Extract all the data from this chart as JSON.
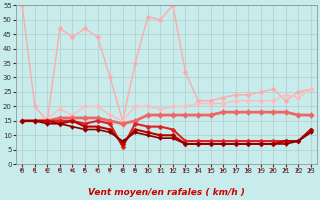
{
  "title": "",
  "xlabel": "Vent moyen/en rafales ( km/h )",
  "background_color": "#c8ecec",
  "grid_color": "#b0cccc",
  "xlim": [
    -0.5,
    23.5
  ],
  "ylim": [
    0,
    55
  ],
  "yticks": [
    0,
    5,
    10,
    15,
    20,
    25,
    30,
    35,
    40,
    45,
    50,
    55
  ],
  "xticks": [
    0,
    1,
    2,
    3,
    4,
    5,
    6,
    7,
    8,
    9,
    10,
    11,
    12,
    13,
    14,
    15,
    16,
    17,
    18,
    19,
    20,
    21,
    22,
    23
  ],
  "lines": [
    {
      "x": [
        0,
        1,
        2,
        3,
        4,
        5,
        6,
        7,
        8,
        9,
        10,
        11,
        12,
        13,
        14,
        15,
        16,
        17,
        18,
        19,
        20,
        21,
        22,
        23
      ],
      "y": [
        55,
        20,
        15,
        47,
        44,
        47,
        44,
        30,
        15,
        35,
        51,
        50,
        55,
        32,
        22,
        22,
        23,
        24,
        24,
        25,
        26,
        22,
        25,
        26
      ],
      "color": "#ffaaaa",
      "lw": 1.0,
      "marker": "D",
      "ms": 2.5
    },
    {
      "x": [
        0,
        1,
        2,
        3,
        4,
        5,
        6,
        7,
        8,
        9,
        10,
        11,
        12,
        13,
        14,
        15,
        16,
        17,
        18,
        19,
        20,
        21,
        22,
        23
      ],
      "y": [
        15,
        15,
        16,
        19,
        17,
        20,
        20,
        17,
        15,
        20,
        20,
        19,
        20,
        20,
        21,
        21,
        21,
        22,
        22,
        22,
        22,
        24,
        23,
        26
      ],
      "color": "#ffbbbb",
      "lw": 1.0,
      "marker": "D",
      "ms": 2.5
    },
    {
      "x": [
        0,
        1,
        2,
        3,
        4,
        5,
        6,
        7,
        8,
        9,
        10,
        11,
        12,
        13,
        14,
        15,
        16,
        17,
        18,
        19,
        20,
        21,
        22,
        23
      ],
      "y": [
        15,
        15,
        15,
        16,
        16,
        16,
        16,
        15,
        14,
        15,
        17,
        17,
        17,
        17,
        17,
        17,
        18,
        18,
        18,
        18,
        18,
        18,
        17,
        17
      ],
      "color": "#ee6666",
      "lw": 2.0,
      "marker": "D",
      "ms": 3
    },
    {
      "x": [
        0,
        1,
        2,
        3,
        4,
        5,
        6,
        7,
        8,
        9,
        10,
        11,
        12,
        13,
        14,
        15,
        16,
        17,
        18,
        19,
        20,
        21,
        22,
        23
      ],
      "y": [
        15,
        15,
        15,
        15,
        15,
        14,
        15,
        14,
        6,
        14,
        13,
        13,
        12,
        8,
        8,
        8,
        8,
        8,
        8,
        8,
        8,
        8,
        8,
        12
      ],
      "color": "#dd2222",
      "lw": 1.5,
      "marker": "D",
      "ms": 2.5
    },
    {
      "x": [
        0,
        1,
        2,
        3,
        4,
        5,
        6,
        7,
        8,
        9,
        10,
        11,
        12,
        13,
        14,
        15,
        16,
        17,
        18,
        19,
        20,
        21,
        22,
        23
      ],
      "y": [
        15,
        15,
        15,
        14,
        15,
        13,
        13,
        12,
        7,
        12,
        11,
        10,
        10,
        7,
        7,
        7,
        7,
        7,
        7,
        7,
        7,
        8,
        8,
        12
      ],
      "color": "#bb0000",
      "lw": 1.5,
      "marker": "D",
      "ms": 2.5
    },
    {
      "x": [
        0,
        1,
        2,
        3,
        4,
        5,
        6,
        7,
        8,
        9,
        10,
        11,
        12,
        13,
        14,
        15,
        16,
        17,
        18,
        19,
        20,
        21,
        22,
        23
      ],
      "y": [
        15,
        15,
        14,
        14,
        13,
        12,
        12,
        11,
        8,
        11,
        10,
        9,
        9,
        7,
        7,
        7,
        7,
        7,
        7,
        7,
        7,
        7,
        8,
        11
      ],
      "color": "#880000",
      "lw": 1.2,
      "marker": "D",
      "ms": 2
    }
  ],
  "arrow_color": "#cc0000",
  "xlabel_color": "#cc0000",
  "xlabel_fontsize": 6.5,
  "tick_fontsize": 5,
  "tick_color": "#333333"
}
